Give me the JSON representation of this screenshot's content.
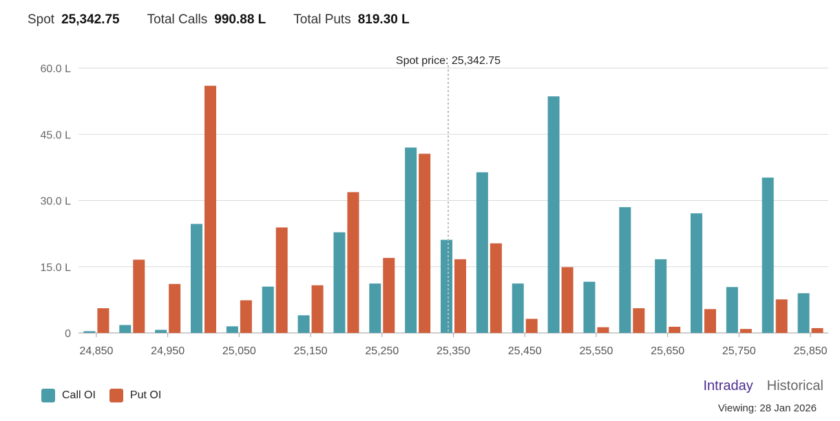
{
  "stats": {
    "spot_label": "Spot",
    "spot_value": "25,342.75",
    "calls_label": "Total Calls",
    "calls_value": "990.88 L",
    "puts_label": "Total Puts",
    "puts_value": "819.30 L"
  },
  "chart_data": {
    "type": "bar",
    "categories": [
      24850,
      24900,
      24950,
      25000,
      25050,
      25100,
      25150,
      25200,
      25250,
      25300,
      25350,
      25400,
      25450,
      25500,
      25550,
      25600,
      25650,
      25700,
      25750,
      25800,
      25850
    ],
    "x_tick_labels": [
      "24,850",
      "24,950",
      "25,050",
      "25,150",
      "25,250",
      "25,350",
      "25,450",
      "25,550",
      "25,650",
      "25,750",
      "25,850"
    ],
    "series": [
      {
        "name": "Call OI",
        "color": "#4a9ca8",
        "values": [
          0.4,
          1.8,
          0.7,
          24.7,
          1.5,
          10.5,
          4.0,
          22.8,
          11.2,
          42.0,
          21.1,
          36.4,
          11.2,
          53.6,
          11.6,
          28.5,
          16.7,
          27.1,
          10.4,
          35.2,
          9.0
        ]
      },
      {
        "name": "Put OI",
        "color": "#d05f3b",
        "values": [
          5.6,
          16.6,
          11.1,
          56.0,
          7.4,
          23.9,
          10.8,
          31.9,
          17.0,
          40.6,
          16.7,
          20.3,
          3.2,
          14.9,
          1.3,
          5.6,
          1.4,
          5.4,
          0.9,
          7.6,
          1.1
        ]
      }
    ],
    "yticks": [
      0,
      15,
      30,
      45,
      60
    ],
    "ytick_labels": [
      "0",
      "15.0 L",
      "30.0 L",
      "45.0 L",
      "60.0 L"
    ],
    "ylim": [
      0,
      60
    ],
    "xlim": [
      24825,
      25875
    ],
    "spot_price": 25342.75,
    "spot_annotation": "Spot price: 25,342.75",
    "grid": true,
    "legend_position": "bottom-left"
  },
  "tabs": [
    {
      "label": "Intraday",
      "active": true
    },
    {
      "label": "Historical",
      "active": false
    }
  ],
  "viewing": "Viewing: 28 Jan 2026"
}
